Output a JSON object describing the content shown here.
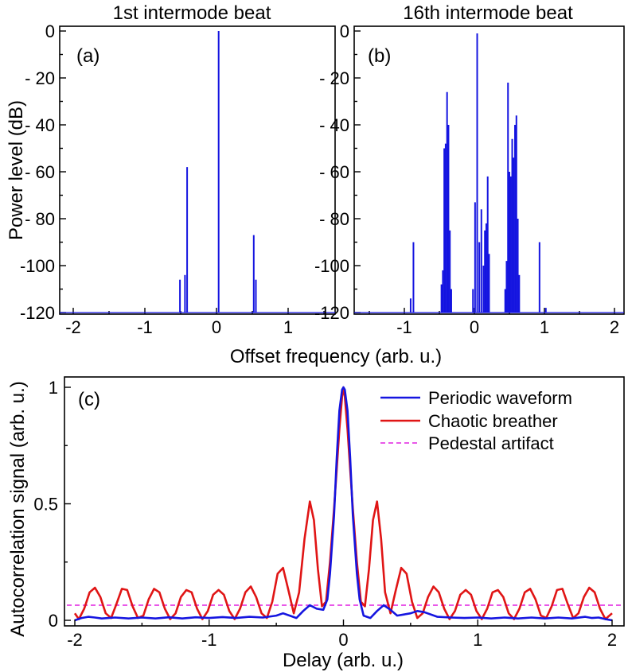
{
  "figure": {
    "shared_xlabel_top": "Offset frequency (arb. u.)",
    "ylabel_top": "Power level (dB)",
    "xlabel_bottom": "Delay (arb. u.)",
    "ylabel_bottom": "Autocorrelation signal (arb. u.)"
  },
  "chart_data": [
    {
      "id": "a",
      "type": "bar",
      "title": "1st intermode beat",
      "panel_label": "(a)",
      "xlabel": "Offset frequency (arb. u.)",
      "ylabel": "Power level (dB)",
      "xlim": [
        -2,
        2
      ],
      "ylim": [
        -120,
        0
      ],
      "y_inverted": true,
      "baseline": -120,
      "xticks": [
        -2,
        -1,
        0,
        1
      ],
      "xtick_labels": [
        "-2",
        "-1",
        "0",
        "1"
      ],
      "yticks": [
        0,
        -20,
        -40,
        -60,
        -80,
        -100,
        -120
      ],
      "ytick_labels": [
        "0",
        "- 20",
        "- 40",
        "- 60",
        "- 80",
        "-100",
        "-120"
      ],
      "color": "#1515e0",
      "lines": [
        {
          "x": -0.51,
          "y": -106
        },
        {
          "x": -0.44,
          "y": -104
        },
        {
          "x": -0.41,
          "y": -58
        },
        {
          "x": 0.03,
          "y": 0
        },
        {
          "x": 0.52,
          "y": -87
        },
        {
          "x": 0.55,
          "y": -106
        }
      ]
    },
    {
      "id": "b",
      "type": "bar",
      "title": "16th intermode beat",
      "panel_label": "(b)",
      "xlabel": "Offset frequency (arb. u.)",
      "ylabel": "Power level (dB)",
      "xlim": [
        -2,
        2
      ],
      "ylim": [
        -120,
        0
      ],
      "y_inverted": true,
      "baseline": -120,
      "xticks": [
        -1,
        0,
        1,
        2
      ],
      "xtick_labels": [
        "-1",
        "0",
        "1",
        "2"
      ],
      "color": "#1515e0",
      "lines": [
        {
          "x": -0.91,
          "y": -114
        },
        {
          "x": -0.87,
          "y": -90
        },
        {
          "x": -0.47,
          "y": -108
        },
        {
          "x": -0.45,
          "y": -102
        },
        {
          "x": -0.43,
          "y": -50
        },
        {
          "x": -0.41,
          "y": -48
        },
        {
          "x": -0.39,
          "y": -26
        },
        {
          "x": -0.37,
          "y": -40
        },
        {
          "x": -0.35,
          "y": -85
        },
        {
          "x": -0.33,
          "y": -110
        },
        {
          "x": -0.02,
          "y": -110
        },
        {
          "x": 0.01,
          "y": -73
        },
        {
          "x": 0.04,
          "y": -1
        },
        {
          "x": 0.07,
          "y": -90
        },
        {
          "x": 0.1,
          "y": -76
        },
        {
          "x": 0.13,
          "y": -100
        },
        {
          "x": 0.15,
          "y": -85
        },
        {
          "x": 0.17,
          "y": -82
        },
        {
          "x": 0.19,
          "y": -62
        },
        {
          "x": 0.21,
          "y": -95
        },
        {
          "x": 0.44,
          "y": -110
        },
        {
          "x": 0.46,
          "y": -98
        },
        {
          "x": 0.48,
          "y": -22
        },
        {
          "x": 0.5,
          "y": -60
        },
        {
          "x": 0.52,
          "y": -62
        },
        {
          "x": 0.54,
          "y": -46
        },
        {
          "x": 0.56,
          "y": -54
        },
        {
          "x": 0.58,
          "y": -40
        },
        {
          "x": 0.6,
          "y": -36
        },
        {
          "x": 0.62,
          "y": -80
        },
        {
          "x": 0.64,
          "y": -104
        },
        {
          "x": 0.93,
          "y": -90
        },
        {
          "x": 1.02,
          "y": -118
        }
      ]
    },
    {
      "id": "c",
      "type": "line",
      "panel_label": "(c)",
      "xlabel": "Delay (arb. u.)",
      "ylabel": "Autocorrelation signal (arb. u.)",
      "xlim": [
        -2,
        2
      ],
      "ylim": [
        0,
        1
      ],
      "xticks": [
        -2,
        -1,
        0,
        1,
        2
      ],
      "xtick_labels": [
        "-2",
        "-1",
        "0",
        "1",
        "2"
      ],
      "yticks": [
        0,
        0.5,
        1
      ],
      "ytick_labels": [
        "0",
        "0.5",
        "1"
      ],
      "legend_position": "top-right",
      "series": [
        {
          "name": "Periodic waveform",
          "color": "#1515e0",
          "style": "solid",
          "x": [
            -2.0,
            -1.95,
            -1.9,
            -1.85,
            -1.8,
            -1.7,
            -1.6,
            -1.5,
            -1.4,
            -1.3,
            -1.2,
            -1.1,
            -1.0,
            -0.9,
            -0.8,
            -0.7,
            -0.6,
            -0.5,
            -0.45,
            -0.4,
            -0.35,
            -0.3,
            -0.25,
            -0.2,
            -0.15,
            -0.12,
            -0.1,
            -0.07,
            -0.05,
            -0.03,
            -0.01,
            0.0,
            0.01,
            0.03,
            0.05,
            0.07,
            0.1,
            0.12,
            0.15,
            0.2,
            0.25,
            0.3,
            0.35,
            0.4,
            0.45,
            0.5,
            0.55,
            0.6,
            0.7,
            0.8,
            0.9,
            1.0,
            1.1,
            1.2,
            1.3,
            1.4,
            1.5,
            1.6,
            1.7,
            1.8,
            1.85,
            1.9,
            1.95,
            2.0
          ],
          "y": [
            0.0,
            0.01,
            0.015,
            0.012,
            0.008,
            0.012,
            0.008,
            0.012,
            0.008,
            0.013,
            0.008,
            0.013,
            0.01,
            0.014,
            0.01,
            0.015,
            0.012,
            0.02,
            0.03,
            0.02,
            0.01,
            0.04,
            0.065,
            0.05,
            0.045,
            0.09,
            0.2,
            0.45,
            0.7,
            0.9,
            0.99,
            1.0,
            0.99,
            0.9,
            0.7,
            0.45,
            0.2,
            0.09,
            0.02,
            0.01,
            0.04,
            0.065,
            0.045,
            0.02,
            0.025,
            0.03,
            0.04,
            0.035,
            0.015,
            0.012,
            0.01,
            0.012,
            0.008,
            0.012,
            0.008,
            0.012,
            0.008,
            0.012,
            0.008,
            0.015,
            0.01,
            0.012,
            0.005,
            0.0
          ]
        },
        {
          "name": "Chaotic breather",
          "color": "#e01515",
          "style": "solid",
          "x": [
            -2.0,
            -1.97,
            -1.93,
            -1.89,
            -1.85,
            -1.81,
            -1.77,
            -1.73,
            -1.69,
            -1.65,
            -1.61,
            -1.57,
            -1.53,
            -1.49,
            -1.45,
            -1.41,
            -1.37,
            -1.33,
            -1.29,
            -1.25,
            -1.21,
            -1.17,
            -1.13,
            -1.09,
            -1.05,
            -1.01,
            -0.97,
            -0.93,
            -0.89,
            -0.85,
            -0.81,
            -0.77,
            -0.73,
            -0.69,
            -0.65,
            -0.61,
            -0.57,
            -0.53,
            -0.49,
            -0.45,
            -0.41,
            -0.37,
            -0.33,
            -0.29,
            -0.25,
            -0.22,
            -0.19,
            -0.16,
            -0.13,
            -0.1,
            -0.07,
            -0.05,
            -0.03,
            -0.01,
            0.0,
            0.01,
            0.03,
            0.05,
            0.07,
            0.1,
            0.13,
            0.16,
            0.19,
            0.22,
            0.25,
            0.28,
            0.31,
            0.35,
            0.39,
            0.43,
            0.47,
            0.51,
            0.55,
            0.59,
            0.63,
            0.67,
            0.71,
            0.75,
            0.79,
            0.83,
            0.87,
            0.91,
            0.95,
            0.99,
            1.03,
            1.07,
            1.11,
            1.15,
            1.19,
            1.23,
            1.27,
            1.31,
            1.35,
            1.39,
            1.43,
            1.47,
            1.51,
            1.55,
            1.59,
            1.63,
            1.67,
            1.71,
            1.75,
            1.79,
            1.83,
            1.87,
            1.91,
            1.95,
            2.0
          ],
          "y": [
            0.03,
            0.005,
            0.05,
            0.12,
            0.14,
            0.1,
            0.03,
            0.01,
            0.07,
            0.135,
            0.13,
            0.06,
            0.01,
            0.02,
            0.09,
            0.135,
            0.12,
            0.05,
            0.005,
            0.03,
            0.1,
            0.13,
            0.12,
            0.05,
            0.005,
            0.04,
            0.11,
            0.13,
            0.11,
            0.04,
            0.005,
            0.05,
            0.12,
            0.145,
            0.1,
            0.03,
            0.01,
            0.08,
            0.2,
            0.225,
            0.13,
            0.03,
            0.12,
            0.35,
            0.51,
            0.43,
            0.22,
            0.06,
            0.08,
            0.25,
            0.48,
            0.65,
            0.82,
            0.96,
            1.0,
            0.96,
            0.82,
            0.65,
            0.48,
            0.25,
            0.08,
            0.06,
            0.22,
            0.43,
            0.51,
            0.35,
            0.12,
            0.03,
            0.13,
            0.225,
            0.2,
            0.08,
            0.01,
            0.03,
            0.1,
            0.145,
            0.12,
            0.05,
            0.005,
            0.04,
            0.11,
            0.13,
            0.11,
            0.04,
            0.005,
            0.05,
            0.12,
            0.13,
            0.1,
            0.03,
            0.005,
            0.05,
            0.12,
            0.135,
            0.09,
            0.02,
            0.01,
            0.06,
            0.13,
            0.135,
            0.07,
            0.01,
            0.03,
            0.1,
            0.14,
            0.12,
            0.05,
            0.005,
            0.03
          ]
        },
        {
          "name": "Pedestal artifact",
          "color": "#e020e0",
          "style": "dashed",
          "x": [
            -2.0,
            2.0
          ],
          "y": [
            0.065,
            0.065
          ]
        }
      ]
    }
  ]
}
